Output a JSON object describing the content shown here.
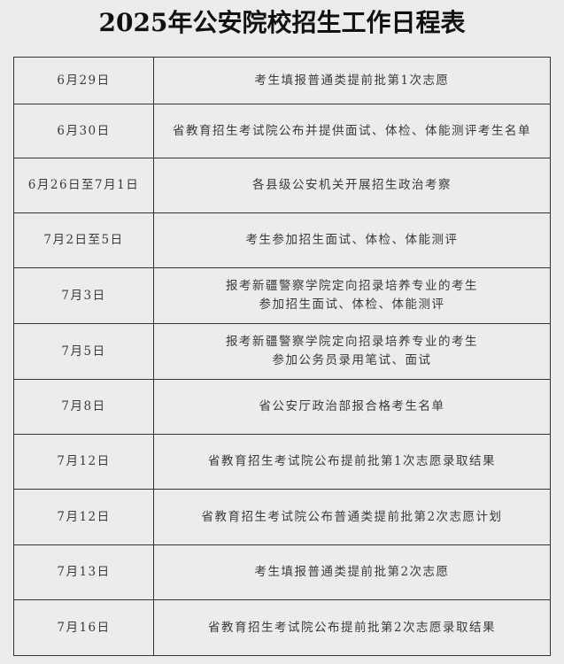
{
  "title": "2025年公安院校招生工作日程表",
  "rows": [
    {
      "date": "6月29日",
      "event": [
        "考生填报普通类提前批第1次志愿"
      ]
    },
    {
      "date": "6月30日",
      "event": [
        "省教育招生考试院公布并提供面试、体检、体能测评考生名单"
      ]
    },
    {
      "date": "6月26日至7月1日",
      "event": [
        "各县级公安机关开展招生政治考察"
      ]
    },
    {
      "date": "7月2日至5日",
      "event": [
        "考生参加招生面试、体检、体能测评"
      ]
    },
    {
      "date": "7月3日",
      "event": [
        "报考新疆警察学院定向招录培养专业的考生",
        "参加招生面试、体检、体能测评"
      ]
    },
    {
      "date": "7月5日",
      "event": [
        "报考新疆警察学院定向招录培养专业的考生",
        "参加公务员录用笔试、面试"
      ]
    },
    {
      "date": "7月8日",
      "event": [
        "省公安厅政治部报合格考生名单"
      ]
    },
    {
      "date": "7月12日",
      "event": [
        "省教育招生考试院公布提前批第1次志愿录取结果"
      ]
    },
    {
      "date": "7月12日",
      "event": [
        "省教育招生考试院公布普通类提前批第2次志愿计划"
      ]
    },
    {
      "date": "7月13日",
      "event": [
        "考生填报普通类提前批第2次志愿"
      ]
    },
    {
      "date": "7月16日",
      "event": [
        "省教育招生考试院公布提前批第2次志愿录取结果"
      ]
    }
  ]
}
